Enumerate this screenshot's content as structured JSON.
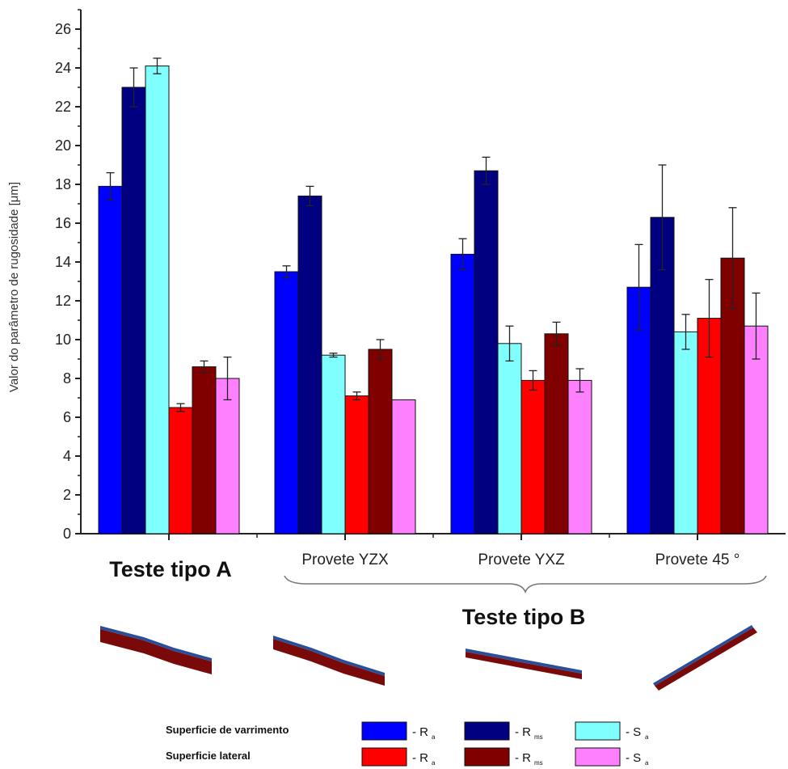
{
  "chart_data": {
    "type": "bar",
    "ylabel": "Valor do parâmetro de rugosidade [μm]",
    "ylim": [
      0,
      27
    ],
    "yticks": [
      0,
      2,
      4,
      6,
      8,
      10,
      12,
      14,
      16,
      18,
      20,
      22,
      24,
      26
    ],
    "categories": [
      "Teste tipo A",
      "Provete YZX",
      "Provete YXZ",
      "Provete 45 °"
    ],
    "group_caption": "Teste tipo B",
    "series": [
      {
        "label": "- Ra",
        "surface": "Superficie de varrimento",
        "color": "#0000ff",
        "values": [
          17.9,
          13.5,
          14.4,
          12.7
        ],
        "errors": [
          0.7,
          0.3,
          0.8,
          2.2
        ]
      },
      {
        "label": "- Rms",
        "surface": "Superficie de varrimento",
        "color": "#000080",
        "values": [
          23.0,
          17.4,
          18.7,
          16.3
        ],
        "errors": [
          1.0,
          0.5,
          0.7,
          2.7
        ]
      },
      {
        "label": "- Sa",
        "surface": "Superficie de varrimento",
        "color": "#80ffff",
        "values": [
          24.1,
          9.2,
          9.8,
          10.4
        ],
        "errors": [
          0.4,
          0.1,
          0.9,
          0.9
        ]
      },
      {
        "label": "- Ra",
        "surface": "Superficie lateral",
        "color": "#ff0000",
        "values": [
          6.5,
          7.1,
          7.9,
          11.1
        ],
        "errors": [
          0.2,
          0.2,
          0.5,
          2.0
        ]
      },
      {
        "label": "- Rms",
        "surface": "Superficie lateral",
        "color": "#800000",
        "values": [
          8.6,
          9.5,
          10.3,
          14.2
        ],
        "errors": [
          0.3,
          0.5,
          0.6,
          2.6
        ]
      },
      {
        "label": "- Sa",
        "surface": "Superficie lateral",
        "color": "#ff80ff",
        "values": [
          8.0,
          6.9,
          7.9,
          10.7
        ],
        "errors": [
          1.1,
          0.0,
          0.6,
          1.7
        ]
      }
    ]
  },
  "legend": {
    "row1_label": "Superficie de varrimento",
    "row2_label": "Superficie lateral",
    "symbols": [
      {
        "letter": "- R",
        "sub": "a"
      },
      {
        "letter": "- R",
        "sub": "ms"
      },
      {
        "letter": "- S",
        "sub": "a"
      }
    ]
  }
}
